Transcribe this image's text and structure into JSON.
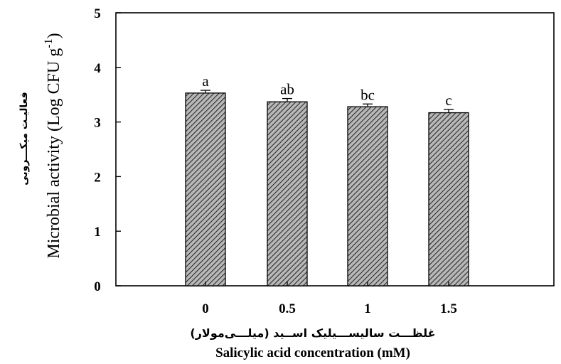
{
  "chart_data": {
    "type": "bar",
    "categories": [
      "0",
      "0.5",
      "1",
      "1.5"
    ],
    "values": [
      3.53,
      3.37,
      3.28,
      3.17
    ],
    "errors": [
      0.05,
      0.06,
      0.05,
      0.06
    ],
    "significance_letters": [
      "a",
      "ab",
      "bc",
      "c"
    ],
    "ylim": [
      0,
      5
    ],
    "yticks": [
      "0",
      "1",
      "2",
      "3",
      "4",
      "5"
    ],
    "ylabel": "Microbial activity (Log CFU g",
    "ylabel_superscript": "-1",
    "ylabel_close": ")",
    "ylabel_persian": "فعالیـت میکـــروبی",
    "xlabel": "Salicylic acid concentration (mM)",
    "xlabel_persian": "غلظـــت سالیســـیلیک اســید (میلـــی‌مولار)",
    "bar_fill": "hatched gray",
    "bar_color": "#888888",
    "grid": false,
    "legend": "none"
  }
}
